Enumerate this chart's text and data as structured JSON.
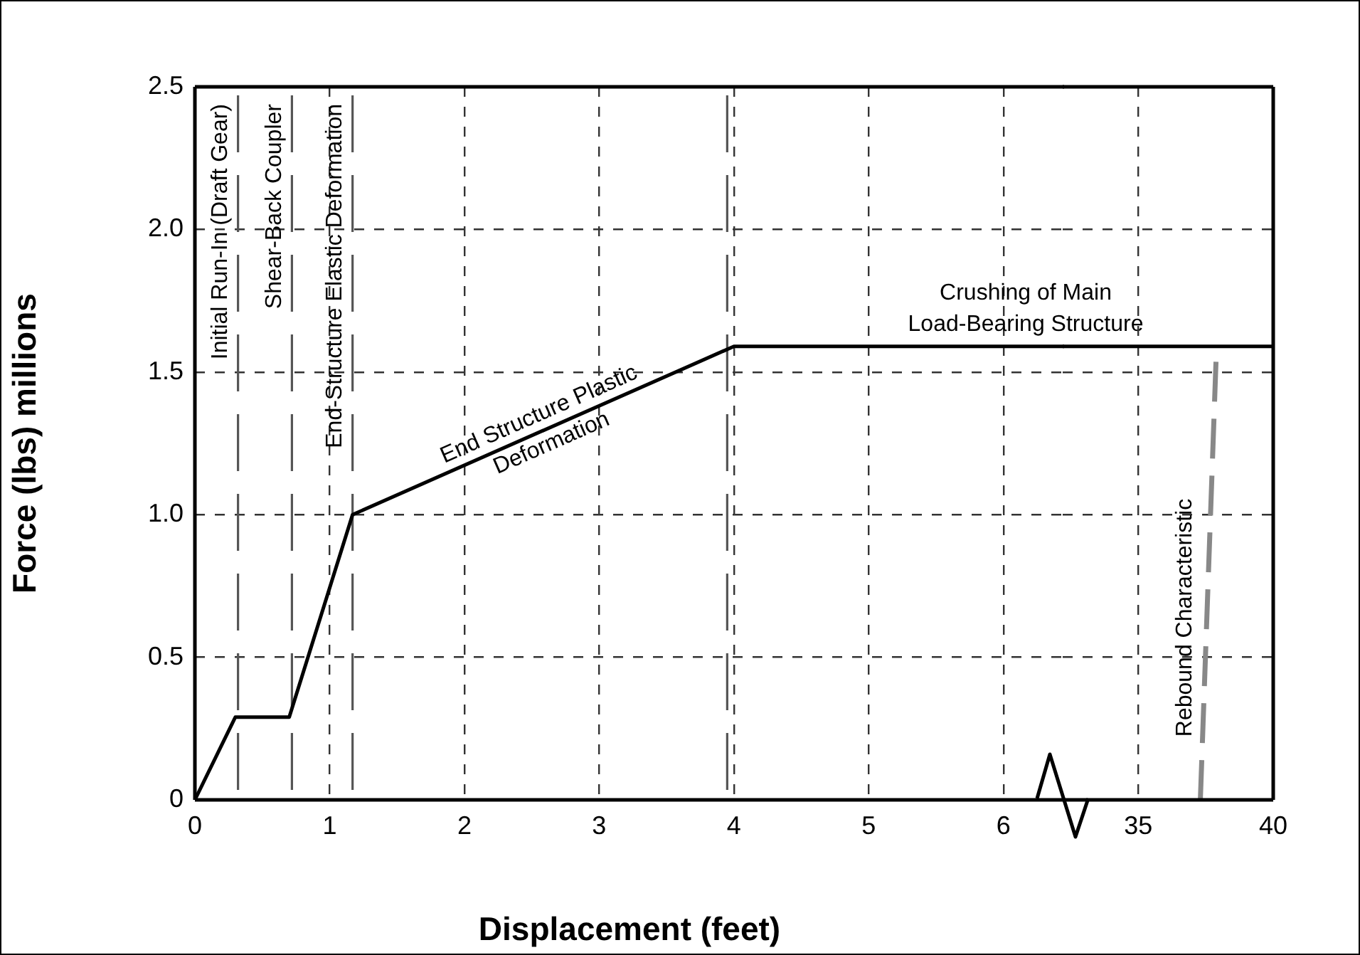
{
  "chart_data": [
    {
      "type": "line",
      "xlabel": "Displacement (feet)",
      "ylabel": "Force (lbs) millions",
      "xlim": [
        0,
        6.45
      ],
      "xticks": [
        0,
        1,
        2,
        3,
        4,
        5,
        6
      ],
      "ylim": [
        0,
        2.5
      ],
      "yticks": [
        0,
        0.5,
        {
          "value": 1,
          "label": "1.0"
        },
        1.5,
        {
          "value": 2,
          "label": "2.0"
        },
        2.5
      ],
      "grid": true,
      "legend": false,
      "marker": "none",
      "series": [
        {
          "color": "#000000",
          "line_style": "solid",
          "x": [
            0,
            0.3,
            0.7,
            1.17,
            4.0,
            6.45
          ],
          "values": [
            0,
            0.29,
            0.29,
            1.0,
            1.59,
            1.59
          ]
        }
      ],
      "ref_lines": [
        {
          "axis": "x",
          "value": 0.32,
          "label": "Initial Run-In (Draft Gear)",
          "color": "#555555",
          "line_style": "dashed"
        },
        {
          "axis": "x",
          "value": 0.72,
          "label": "Shear-Back Coupler",
          "color": "#555555",
          "line_style": "dashed"
        },
        {
          "axis": "x",
          "value": 1.17,
          "label": "End-Structure Elastic Deformation",
          "color": "#555555",
          "line_style": "dashed"
        },
        {
          "axis": "x",
          "value": 3.95,
          "label": null,
          "color": "#555555",
          "line_style": "dashed"
        }
      ],
      "annotations": [
        {
          "text": "End Structure Plastic\nDeformation",
          "x": 2.6,
          "y": 1.3
        },
        "Crushing of Main\nLoad-Bearing Structure"
      ]
    },
    {
      "type": "line",
      "tick_labels": "x",
      "xlim": [
        32.2,
        40
      ],
      "xticks": [
        35,
        40
      ],
      "ylim": [
        0,
        2.5
      ],
      "yticks": [
        0,
        0.5,
        1,
        1.5,
        2,
        2.5
      ],
      "grid": true,
      "legend": false,
      "marker": "none",
      "series": [
        {
          "color": "#000000",
          "line_style": "solid",
          "x": [
            32.2,
            40
          ],
          "values": [
            1.59,
            1.59
          ]
        },
        {
          "color": "#888888",
          "line_style": "dashed",
          "x": [
            37.3,
            37.9
          ],
          "values": [
            0,
            1.59
          ]
        }
      ],
      "annotations": [
        "Rebound Characteristic"
      ]
    }
  ]
}
